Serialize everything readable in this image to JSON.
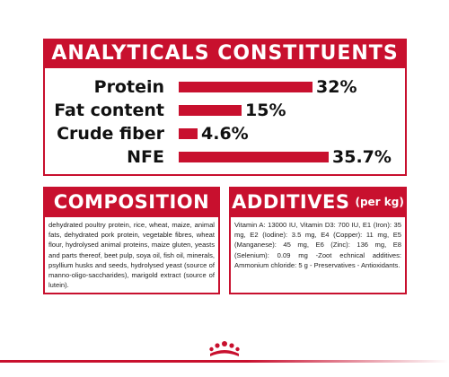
{
  "analyticals": {
    "title": "ANALYTICALS CONSTITUENTS",
    "rows": [
      {
        "label": "Protein",
        "value": "32%",
        "fraction": 0.32
      },
      {
        "label": "Fat content",
        "value": "15%",
        "fraction": 0.15
      },
      {
        "label": "Crude fiber",
        "value": "4.6%",
        "fraction": 0.046
      },
      {
        "label": "NFE",
        "value": "35.7%",
        "fraction": 0.357
      }
    ]
  },
  "composition": {
    "title": "COMPOSITION",
    "text": "dehydrated poultry protein, rice, wheat, maize, animal fats, dehydrated pork protein, vegetable fibres, wheat flour, hydrolysed animal proteins, maize gluten, yeasts and parts thereof, beet pulp, soya oil, fish oil, minerals, psyllium husks and seeds, hydrolysed yeast (source of manno-oligo-saccharides), marigold extract (source of lutein)."
  },
  "additives": {
    "title": "ADDITIVES",
    "subtitle": "(per kg)",
    "text": "Vitamin A: 13000 IU, Vitamin D3: 700 IU, E1 (Iron): 35 mg, E2 (Iodine): 3.5 mg, E4 (Copper): 11 mg, E5 (Manganese): 45 mg, E6 (Zinc): 136 mg, E8 (Selenium): 0.09 mg -Zoot echnical additives: Ammonium chloride: 5 g - Preservatives - Antioxidants."
  },
  "colors": {
    "brand_red": "#c8102e"
  },
  "footer": {
    "icon": "crown-logo-icon"
  }
}
